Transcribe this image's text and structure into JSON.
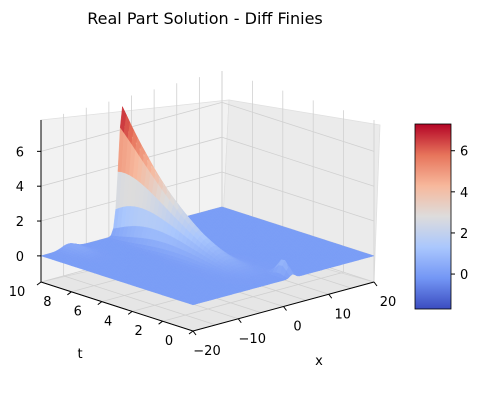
{
  "chart_data": {
    "type": "surface",
    "title": "Real Part Solution - Diff Finies",
    "xlabel": "x",
    "ylabel": "t",
    "zlabel": "",
    "x_range": [
      -20,
      20
    ],
    "t_range": [
      0,
      10
    ],
    "z_range": [
      -1.5,
      7.8
    ],
    "x_ticks": [
      "−20",
      "−10",
      "0",
      "10",
      "20"
    ],
    "t_ticks": [
      "0",
      "2",
      "4",
      "6",
      "8",
      "10"
    ],
    "z_ticks": [
      "0",
      "2",
      "4",
      "6"
    ],
    "colorbar_ticks": [
      "0",
      "2",
      "4",
      "6"
    ],
    "colorbar_range": [
      -1.7,
      7.3
    ],
    "colormap": "coolwarm",
    "colormap_stops": [
      "#3b4cc0",
      "#7396f5",
      "#aac7fd",
      "#dddcdc",
      "#f7b89c",
      "#e7745b",
      "#b40426"
    ],
    "peak": {
      "x": -2,
      "t": 10,
      "z": 7.3
    },
    "grid": true
  }
}
